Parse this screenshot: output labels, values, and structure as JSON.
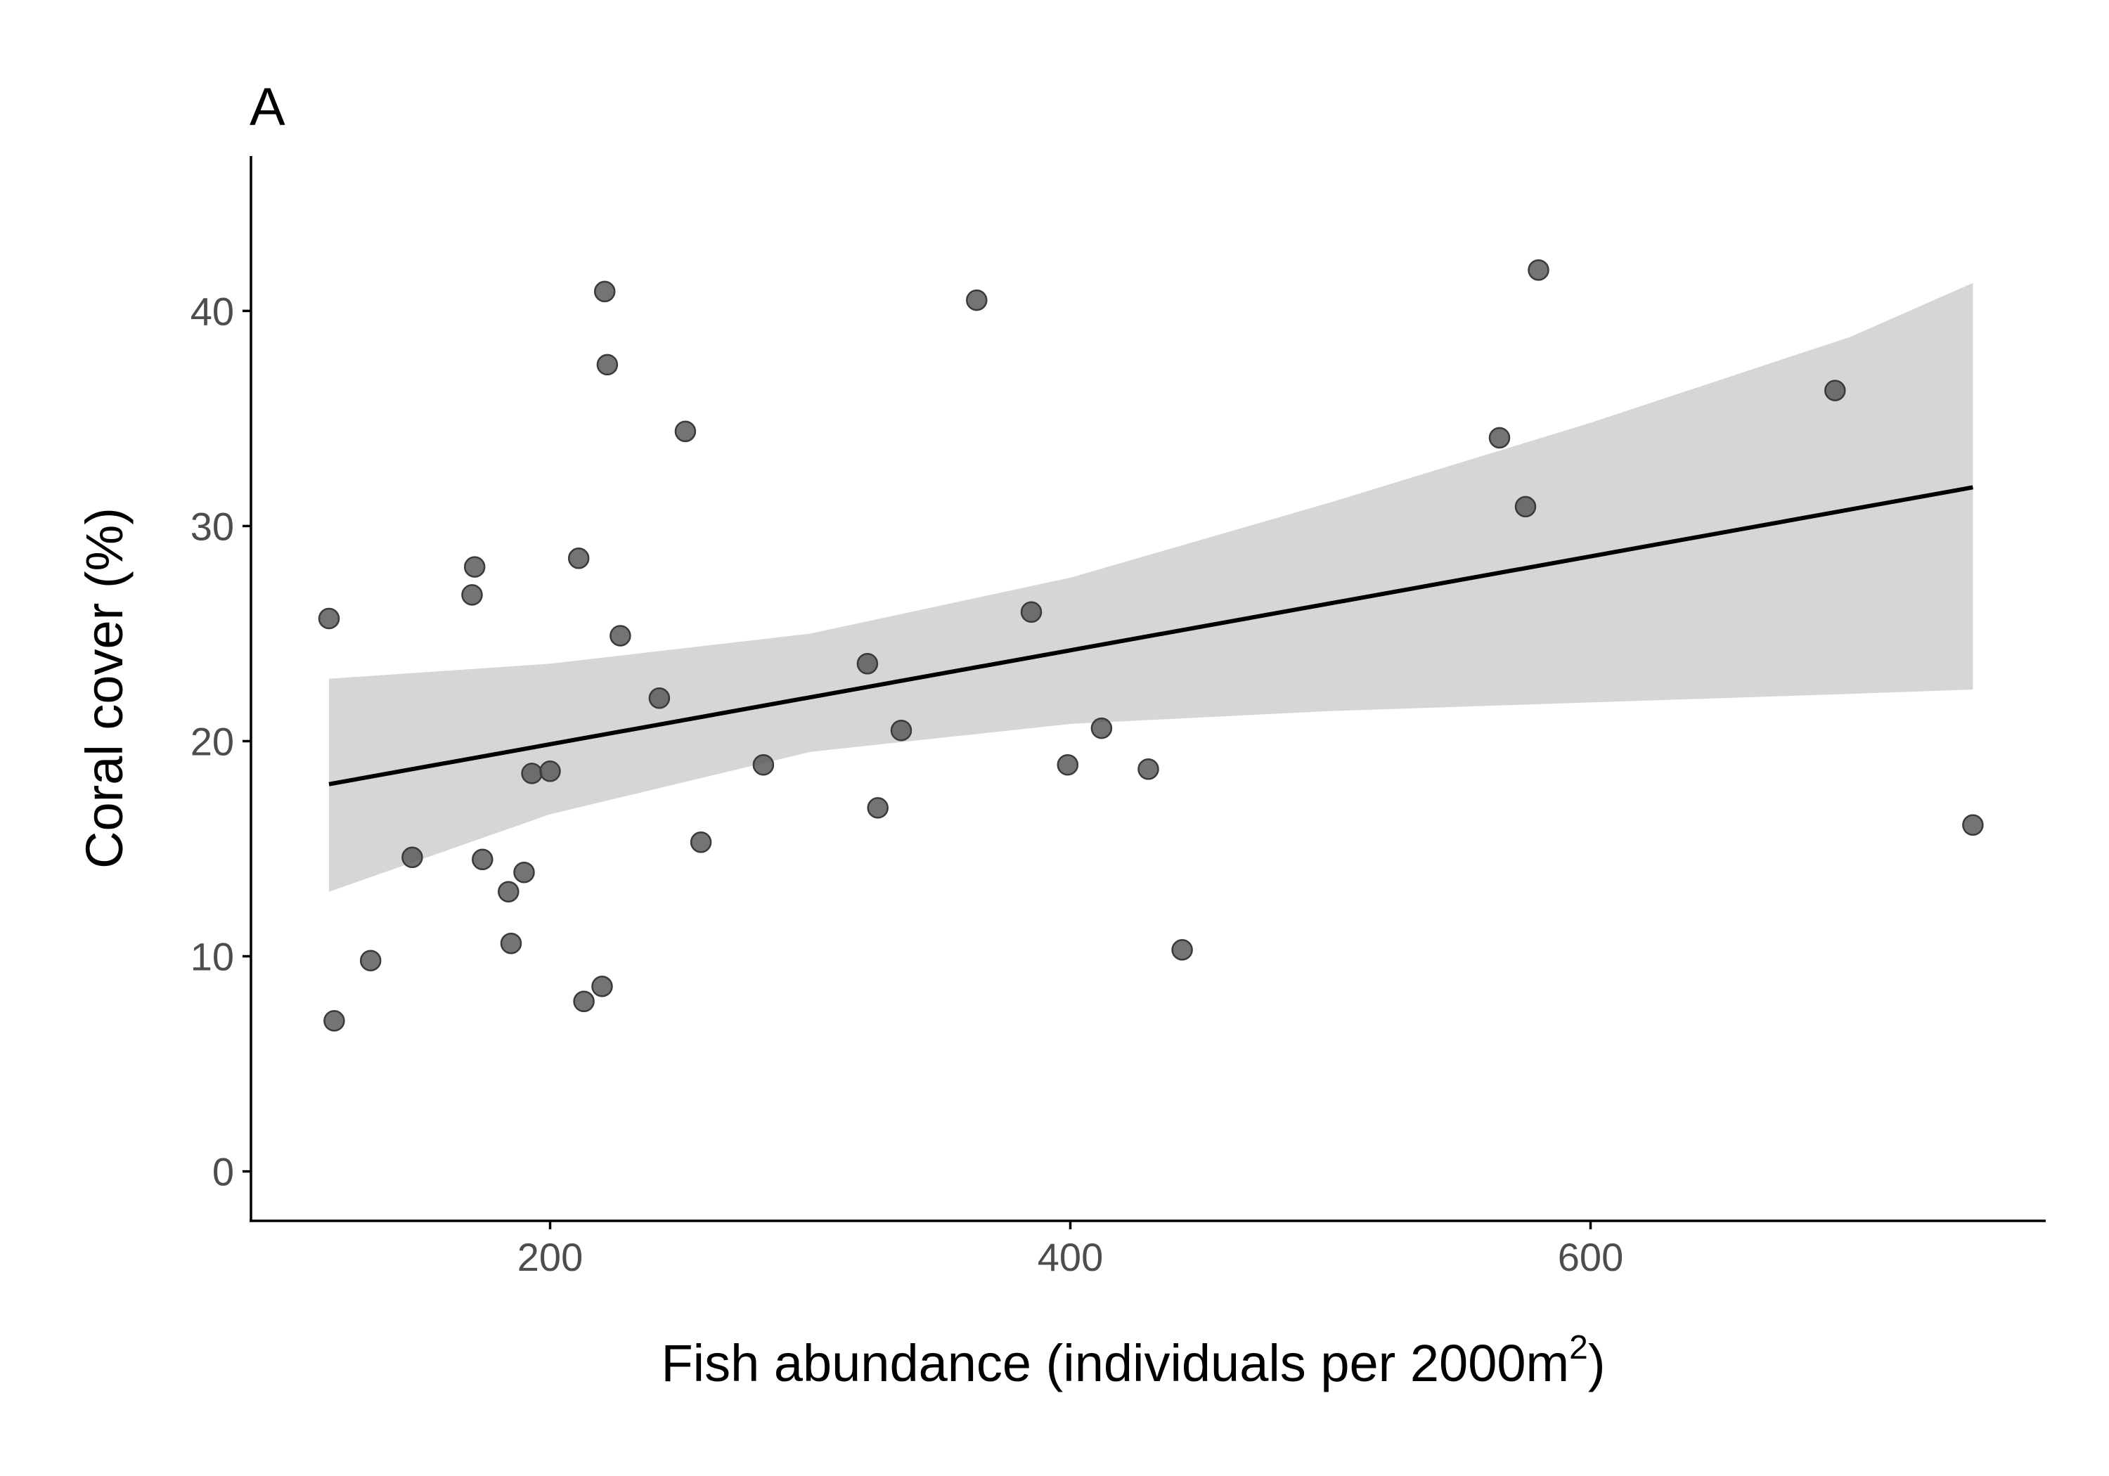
{
  "chart_data": {
    "type": "scatter",
    "panel_label": "A",
    "xlabel": "Fish abundance (individuals per 2000m",
    "xlabel_superscript": "2",
    "xlabel_suffix": ")",
    "ylabel": "Coral cover (%)",
    "xlim": [
      85,
      775
    ],
    "ylim": [
      -2.3,
      47.2
    ],
    "xticks": [
      200,
      400,
      600
    ],
    "yticks": [
      0,
      10,
      20,
      30,
      40
    ],
    "grid": false,
    "legend": "none",
    "points": [
      {
        "x": 115,
        "y": 25.7
      },
      {
        "x": 117,
        "y": 7.0
      },
      {
        "x": 131,
        "y": 9.8
      },
      {
        "x": 147,
        "y": 14.6
      },
      {
        "x": 170,
        "y": 26.8
      },
      {
        "x": 171,
        "y": 28.1
      },
      {
        "x": 174,
        "y": 14.5
      },
      {
        "x": 184,
        "y": 13.0
      },
      {
        "x": 185,
        "y": 10.6
      },
      {
        "x": 190,
        "y": 13.9
      },
      {
        "x": 193,
        "y": 18.5
      },
      {
        "x": 200,
        "y": 18.6
      },
      {
        "x": 211,
        "y": 28.5
      },
      {
        "x": 213,
        "y": 7.9
      },
      {
        "x": 220,
        "y": 8.6
      },
      {
        "x": 221,
        "y": 40.9
      },
      {
        "x": 222,
        "y": 37.5
      },
      {
        "x": 227,
        "y": 24.9
      },
      {
        "x": 242,
        "y": 22.0
      },
      {
        "x": 252,
        "y": 34.4
      },
      {
        "x": 258,
        "y": 15.3
      },
      {
        "x": 282,
        "y": 18.9
      },
      {
        "x": 322,
        "y": 23.6
      },
      {
        "x": 326,
        "y": 16.9
      },
      {
        "x": 335,
        "y": 20.5
      },
      {
        "x": 364,
        "y": 40.5
      },
      {
        "x": 385,
        "y": 26.0
      },
      {
        "x": 399,
        "y": 18.9
      },
      {
        "x": 412,
        "y": 20.6
      },
      {
        "x": 430,
        "y": 18.7
      },
      {
        "x": 443,
        "y": 10.3
      },
      {
        "x": 565,
        "y": 34.1
      },
      {
        "x": 575,
        "y": 30.9
      },
      {
        "x": 580,
        "y": 41.9
      },
      {
        "x": 694,
        "y": 36.3
      },
      {
        "x": 747,
        "y": 16.1
      }
    ],
    "fit_line": {
      "x": [
        115,
        747
      ],
      "y": [
        18.0,
        31.8
      ]
    },
    "confidence_band": {
      "x": [
        115,
        200,
        300,
        400,
        500,
        600,
        700,
        747
      ],
      "upper": [
        22.9,
        23.6,
        25.0,
        27.6,
        31.1,
        34.8,
        38.8,
        41.3
      ],
      "lower": [
        13.0,
        16.6,
        19.5,
        20.8,
        21.4,
        21.8,
        22.2,
        22.4
      ]
    },
    "colors": {
      "points_fill": "#555555",
      "points_stroke": "#3a3a3a",
      "band": "#d6d6d6",
      "line": "#000000",
      "axis": "#000000",
      "tick_label": "#4d4d4d"
    }
  }
}
